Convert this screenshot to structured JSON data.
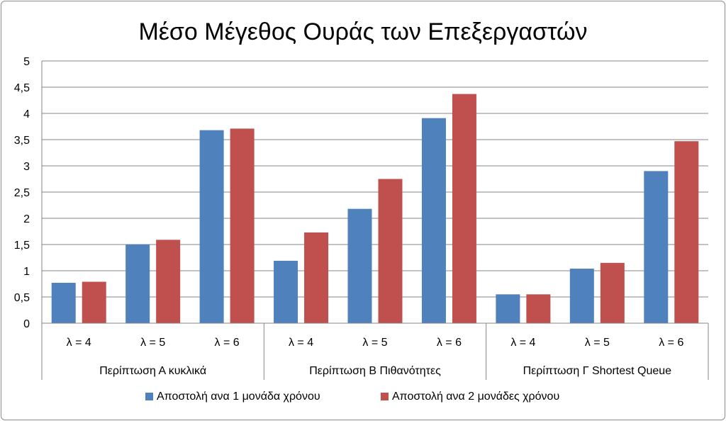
{
  "chart_data": {
    "type": "bar",
    "title": "Μέσο Μέγεθος Ουράς των Επεξεργαστών",
    "xlabel": "",
    "ylabel": "",
    "ylim": [
      0,
      5
    ],
    "y_ticks": [
      "0",
      "0,5",
      "1",
      "1,5",
      "2",
      "2,5",
      "3",
      "3,5",
      "4",
      "4,5",
      "5"
    ],
    "grid": true,
    "legend_position": "bottom",
    "groups": [
      {
        "name": "Περίπτωση Α κυκλικά",
        "categories": [
          "λ = 4",
          "λ = 5",
          "λ = 6"
        ]
      },
      {
        "name": "Περίπτωση Β Πιθανότητες",
        "categories": [
          "λ = 4",
          "λ = 5",
          "λ = 6"
        ]
      },
      {
        "name": "Περίπτωση Γ  Shortest Queue",
        "categories": [
          "λ = 4",
          "λ = 5",
          "λ = 6"
        ]
      }
    ],
    "series": [
      {
        "name": "Αποστολή ανα 1 μονάδα χρόνου",
        "color": "#4F81BD",
        "values": [
          0.77,
          1.5,
          3.68,
          1.19,
          2.18,
          3.91,
          0.55,
          1.04,
          2.9
        ]
      },
      {
        "name": "Αποστολή ανα 2 μονάδες χρόνου",
        "color": "#C0504D",
        "values": [
          0.79,
          1.59,
          3.71,
          1.73,
          2.75,
          4.37,
          0.55,
          1.15,
          3.47
        ]
      }
    ]
  }
}
